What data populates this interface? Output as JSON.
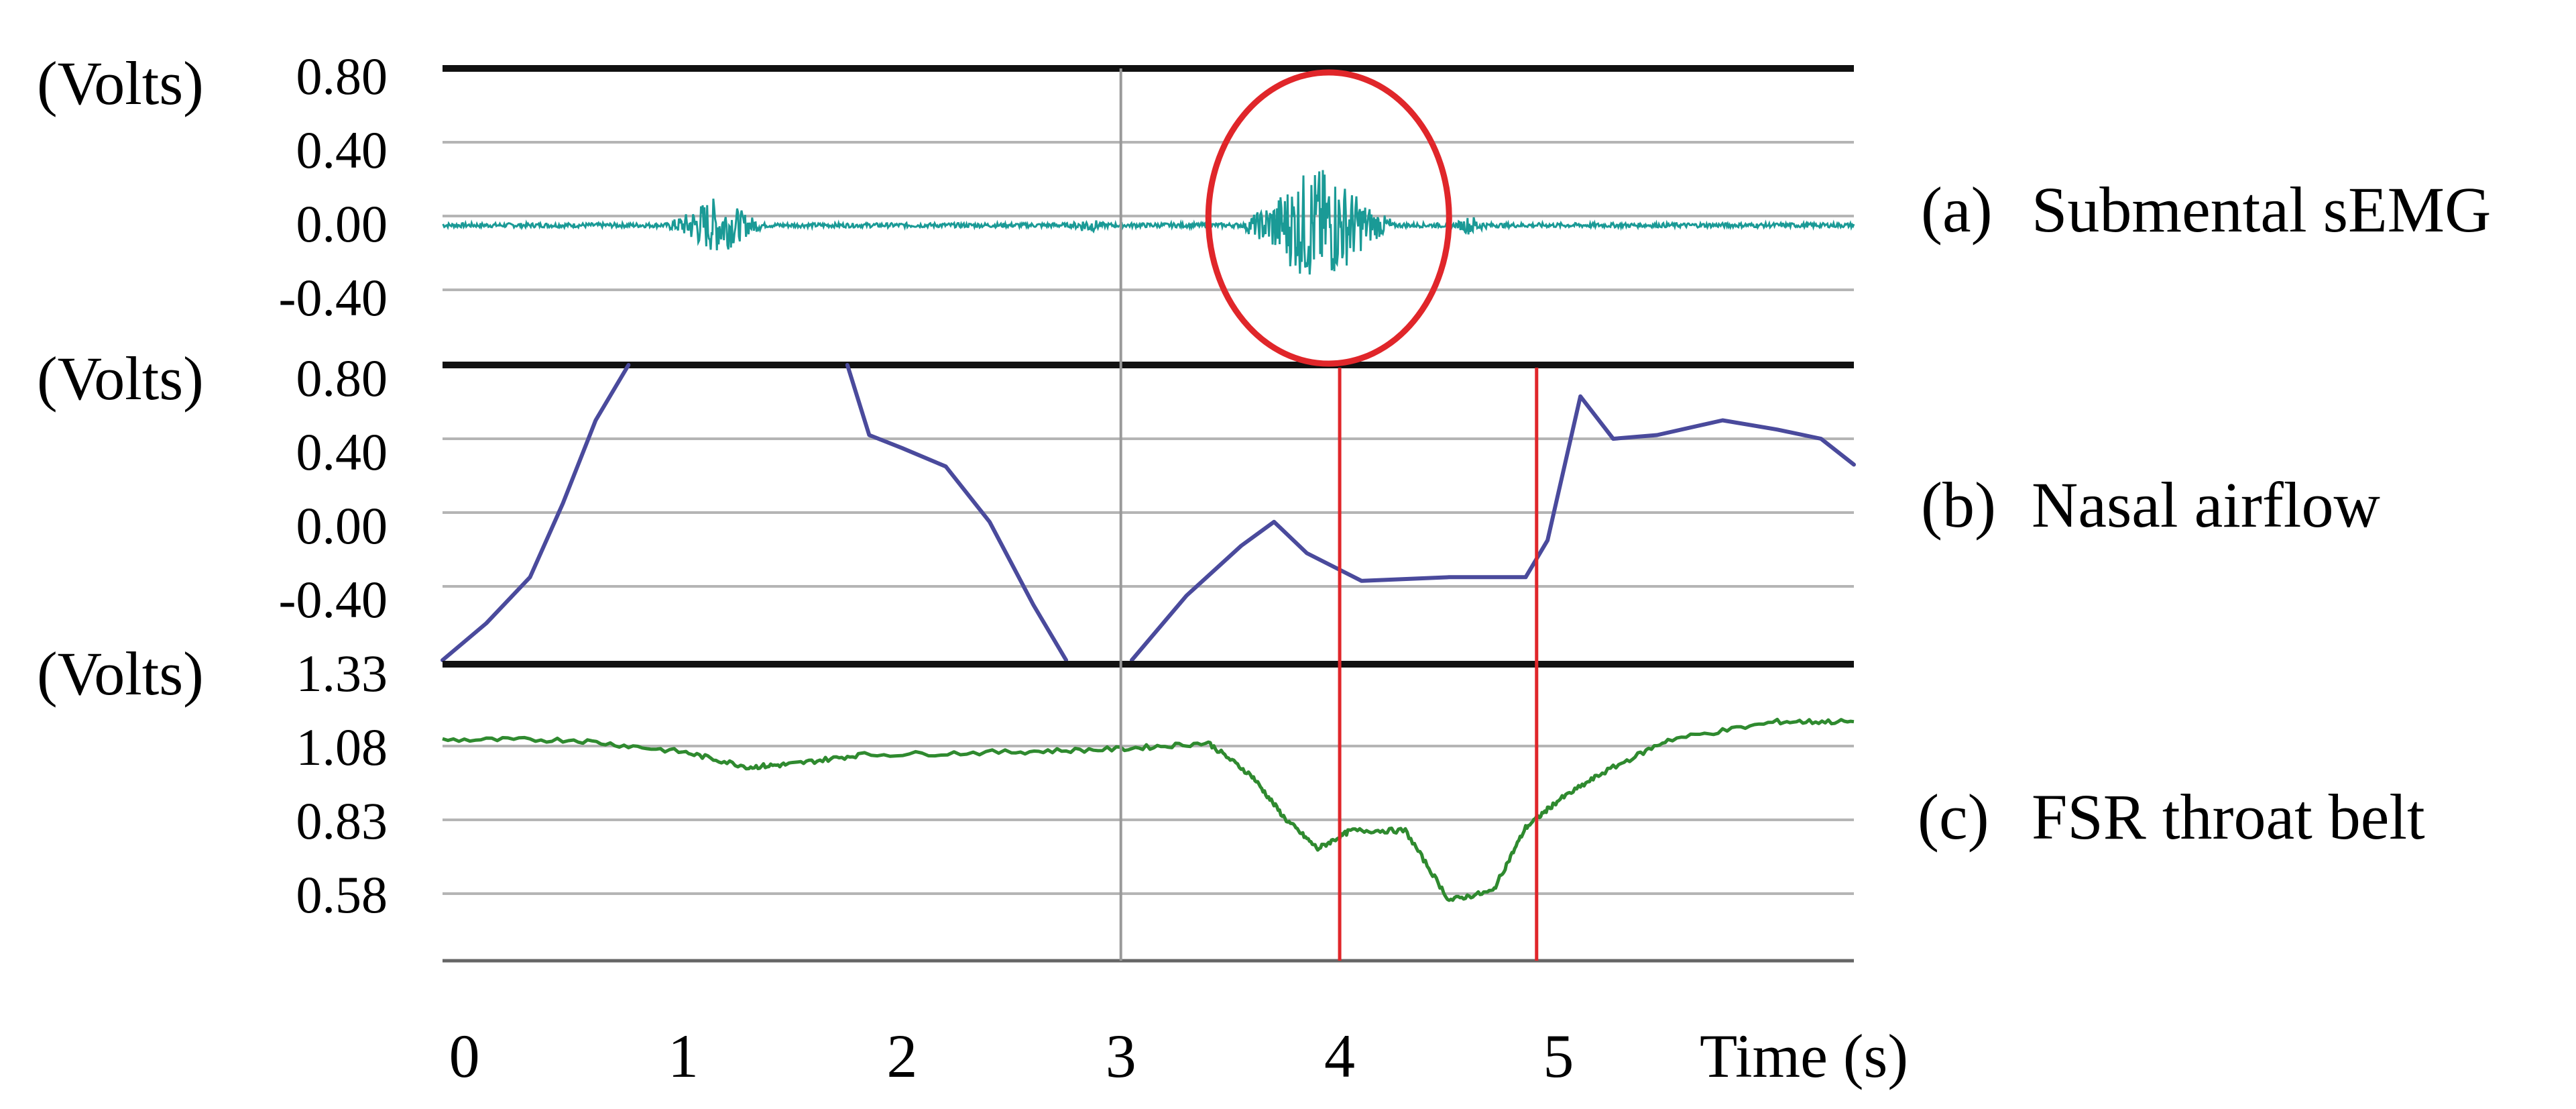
{
  "chart_data": {
    "type": "line",
    "xlabel": "Time (s)",
    "xlim": [
      -0.1,
      6.35
    ],
    "xticks": [
      {
        "value": 0,
        "label": "0"
      },
      {
        "value": 1,
        "label": "1"
      },
      {
        "value": 2,
        "label": "2"
      },
      {
        "value": 3,
        "label": "3"
      },
      {
        "value": 4,
        "label": "4"
      },
      {
        "value": 5,
        "label": "5"
      }
    ],
    "event_markers_x": [
      3.0,
      4.0,
      4.9
    ],
    "event_marker_colors": [
      "#999999",
      "#e0262a",
      "#e0262a"
    ],
    "highlight_ellipse": {
      "x_center": 3.95,
      "x_halfwidth": 0.55,
      "panel": "a",
      "color": "#e0262a"
    },
    "panels": [
      {
        "id": "a",
        "label_tag": "(a)",
        "label_text": "Submental sEMG",
        "ylabel": "(Volts)",
        "ylim": [
          -0.6,
          0.8
        ],
        "yticks": [
          "0.80",
          "0.40",
          "0.00",
          "-0.40"
        ],
        "ytick_values": [
          0.8,
          0.4,
          0.0,
          -0.4
        ],
        "color": "#1a9a96",
        "baseline": -0.05,
        "bursts": [
          {
            "center": 1.15,
            "width": 0.35,
            "amplitude": 0.14
          },
          {
            "center": 2.85,
            "width": 0.12,
            "amplitude": 0.03
          },
          {
            "center": 3.9,
            "width": 0.55,
            "amplitude": 0.3
          },
          {
            "center": 4.6,
            "width": 0.12,
            "amplitude": 0.04
          }
        ]
      },
      {
        "id": "b",
        "label_tag": "(b)",
        "label_text": "Nasal airflow",
        "ylabel": "(Volts)",
        "ylim": [
          -0.8,
          0.8
        ],
        "yticks": [
          "0.80",
          "0.40",
          "0.00",
          "-0.40"
        ],
        "ytick_values": [
          0.8,
          0.4,
          0.0,
          -0.4
        ],
        "color": "#4a4a9c",
        "segments": [
          {
            "x": [
              -0.1,
              0.1,
              0.3,
              0.45,
              0.6,
              0.75
            ],
            "y": [
              -0.8,
              -0.6,
              -0.35,
              0.05,
              0.5,
              0.8
            ]
          },
          {
            "x": [
              1.75,
              1.85,
              2.0,
              2.2,
              2.4,
              2.6,
              2.75
            ],
            "y": [
              0.8,
              0.42,
              0.35,
              0.25,
              -0.05,
              -0.5,
              -0.8
            ]
          },
          {
            "x": [
              3.05,
              3.3,
              3.55,
              3.7,
              3.85,
              4.1,
              4.5,
              4.85,
              4.95,
              5.1,
              5.25,
              5.45,
              5.75,
              6.0,
              6.2,
              6.35
            ],
            "y": [
              -0.8,
              -0.45,
              -0.18,
              -0.05,
              -0.22,
              -0.37,
              -0.35,
              -0.35,
              -0.15,
              0.63,
              0.4,
              0.42,
              0.5,
              0.45,
              0.4,
              0.26
            ]
          }
        ]
      },
      {
        "id": "c",
        "label_tag": "(c)",
        "label_text": "FSR throat belt",
        "ylabel": "(Volts)",
        "ylim": [
          0.35,
          1.33
        ],
        "yticks": [
          "1.33",
          "1.08",
          "0.83",
          "0.58"
        ],
        "ytick_values": [
          1.33,
          1.08,
          0.83,
          0.58
        ],
        "color": "#2f8a2f",
        "x": [
          -0.1,
          0.5,
          1.0,
          1.3,
          1.5,
          1.8,
          2.5,
          3.0,
          3.4,
          3.6,
          3.75,
          3.9,
          4.05,
          4.3,
          4.5,
          4.7,
          4.85,
          5.0,
          5.2,
          5.5,
          6.0,
          6.35
        ],
        "y": [
          1.08,
          1.08,
          1.04,
          0.99,
          1.0,
          1.03,
          1.04,
          1.05,
          1.07,
          0.96,
          0.82,
          0.72,
          0.78,
          0.78,
          0.55,
          0.58,
          0.79,
          0.88,
          0.97,
          1.08,
          1.14,
          1.14
        ]
      }
    ]
  }
}
